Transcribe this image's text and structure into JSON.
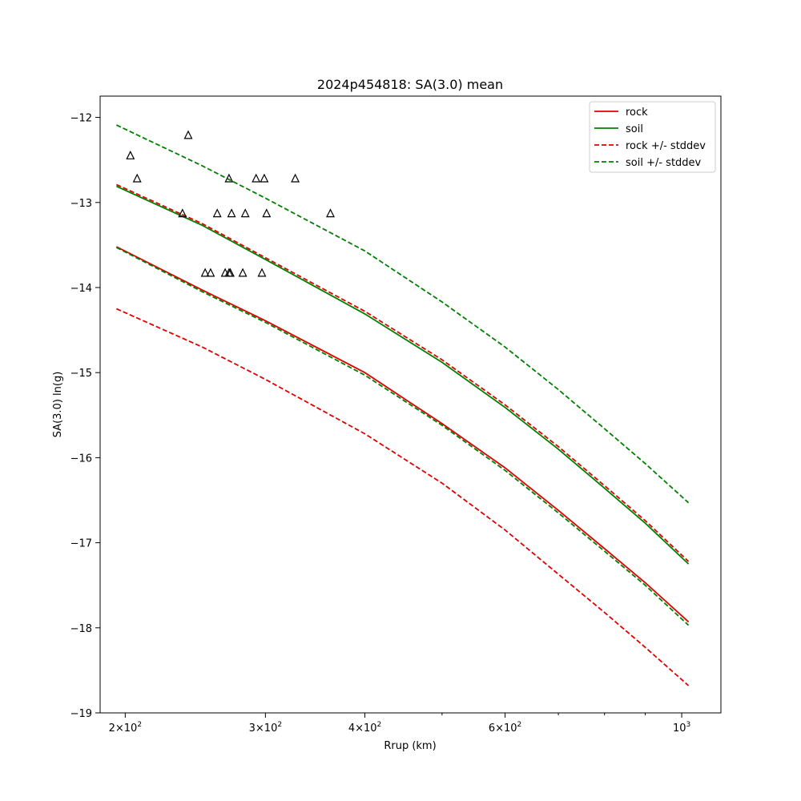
{
  "chart_data": {
    "type": "line",
    "title": "2024p454818: SA(3.0) mean",
    "xlabel": "Rrup (km)",
    "ylabel": "SA(3.0) ln(g)",
    "xscale": "log",
    "xlim": [
      186,
      1120
    ],
    "ylim": [
      -19,
      -11.75
    ],
    "x_ticks": [
      {
        "value": 200,
        "mantissa": "2",
        "base": "10",
        "exp": "2"
      },
      {
        "value": 300,
        "mantissa": "3",
        "base": "10",
        "exp": "2"
      },
      {
        "value": 400,
        "mantissa": "4",
        "base": "10",
        "exp": "2"
      },
      {
        "value": 600,
        "mantissa": "6",
        "base": "10",
        "exp": "2"
      },
      {
        "value": 1000,
        "mantissa": "",
        "base": "10",
        "exp": "3"
      }
    ],
    "x_minor_ticks": [
      500,
      700,
      800,
      900
    ],
    "y_ticks": [
      {
        "value": -12,
        "label": "−12"
      },
      {
        "value": -13,
        "label": "−13"
      },
      {
        "value": -14,
        "label": "−14"
      },
      {
        "value": -15,
        "label": "−15"
      },
      {
        "value": -16,
        "label": "−16"
      },
      {
        "value": -17,
        "label": "−17"
      },
      {
        "value": -18,
        "label": "−18"
      },
      {
        "value": -19,
        "label": "−19"
      }
    ],
    "grid": false,
    "legend_position": "top-right",
    "series": [
      {
        "name": "rock",
        "style": "solid",
        "color": "#e00000",
        "x": [
          195,
          250,
          300,
          400,
          500,
          600,
          700,
          800,
          900,
          1020
        ],
        "y": [
          -13.52,
          -14.03,
          -14.39,
          -15.0,
          -15.6,
          -16.12,
          -16.62,
          -17.07,
          -17.47,
          -17.93
        ]
      },
      {
        "name": "soil",
        "style": "solid",
        "color": "#008000",
        "x": [
          195,
          250,
          300,
          400,
          500,
          600,
          700,
          800,
          900,
          1020
        ],
        "y": [
          -12.81,
          -13.27,
          -13.67,
          -14.31,
          -14.88,
          -15.41,
          -15.9,
          -16.36,
          -16.77,
          -17.25
        ]
      },
      {
        "name": "rock +/- stddev",
        "style": "dashed",
        "color": "#e00000",
        "x": [
          195,
          250,
          300,
          400,
          500,
          600,
          700,
          800,
          900,
          1020
        ],
        "y_upper": [
          -12.79,
          -13.25,
          -13.65,
          -14.28,
          -14.85,
          -15.38,
          -15.87,
          -16.33,
          -16.74,
          -17.22
        ],
        "y_lower": [
          -14.25,
          -14.7,
          -15.08,
          -15.72,
          -16.3,
          -16.85,
          -17.37,
          -17.82,
          -18.23,
          -18.68
        ]
      },
      {
        "name": "soil +/- stddev",
        "style": "dashed",
        "color": "#008000",
        "x": [
          195,
          250,
          300,
          400,
          500,
          600,
          700,
          800,
          900,
          1020
        ],
        "y_upper": [
          -12.09,
          -12.57,
          -12.95,
          -13.57,
          -14.17,
          -14.7,
          -15.2,
          -15.66,
          -16.07,
          -16.53
        ],
        "y_lower": [
          -13.53,
          -14.05,
          -14.41,
          -15.03,
          -15.62,
          -16.15,
          -16.65,
          -17.1,
          -17.5,
          -17.97
        ]
      }
    ],
    "observations": {
      "marker": "triangle",
      "x": [
        203,
        240,
        207,
        270,
        292,
        299,
        327,
        236,
        261,
        272,
        283,
        301,
        362,
        252,
        256,
        267,
        270,
        271,
        281,
        297
      ],
      "y": [
        -12.45,
        -12.21,
        -12.72,
        -12.72,
        -12.72,
        -12.72,
        -12.72,
        -13.13,
        -13.13,
        -13.13,
        -13.13,
        -13.13,
        -13.13,
        -13.83,
        -13.83,
        -13.83,
        -13.83,
        -13.83,
        -13.83,
        -13.83
      ]
    }
  }
}
